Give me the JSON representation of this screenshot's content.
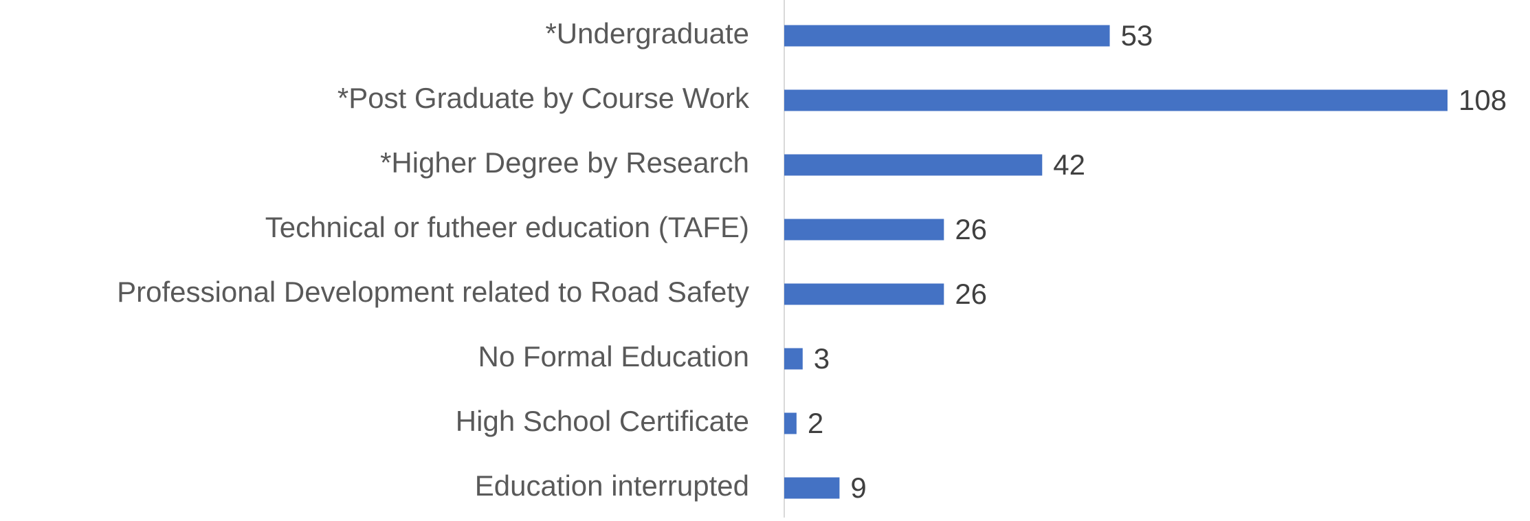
{
  "chart_data": {
    "type": "bar",
    "orientation": "horizontal",
    "categories": [
      "*Undergraduate",
      "*Post Graduate by Course Work",
      "*Higher Degree by Research",
      "Technical or futheer education (TAFE)",
      "Professional Development related to Road Safety",
      "No Formal Education",
      "High School Certificate",
      "Education interrupted"
    ],
    "values": [
      53,
      108,
      42,
      26,
      26,
      3,
      2,
      9
    ],
    "color": "#4472c4",
    "grid": false
  }
}
